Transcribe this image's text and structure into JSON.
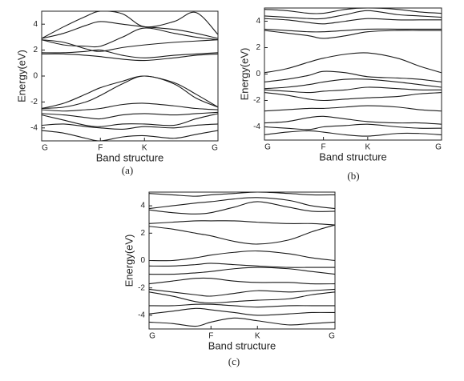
{
  "chart_data": [
    {
      "type": "line",
      "caption": "(a)",
      "xlabel": "Band structure",
      "ylabel": "Energy(eV)",
      "color": "#1a1a1a",
      "xlim": [
        0,
        1
      ],
      "ylim": [
        -5,
        5
      ],
      "xticks": [
        {
          "value": 0,
          "label": "G"
        },
        {
          "value": 0.333,
          "label": "F"
        },
        {
          "value": 0.583,
          "label": "K"
        },
        {
          "value": 1,
          "label": "G"
        }
      ],
      "yticks": [
        -4,
        -2,
        0,
        2,
        4
      ],
      "x": [
        0,
        0.125,
        0.25,
        0.333,
        0.458,
        0.583,
        0.75,
        0.875,
        1
      ],
      "series": [
        {
          "values": [
            2.9,
            3.8,
            4.6,
            5,
            4.8,
            3.8,
            4.2,
            4.9,
            3.2
          ]
        },
        {
          "values": [
            2.9,
            3.3,
            3.9,
            4.2,
            4.0,
            3.8,
            3.6,
            3.3,
            2.9
          ]
        },
        {
          "values": [
            2.8,
            2.4,
            2.3,
            2.3,
            3.0,
            3.7,
            3.3,
            3.0,
            2.8
          ]
        },
        {
          "values": [
            2.8,
            2.6,
            2.1,
            1.9,
            2.2,
            2.4,
            2.6,
            2.7,
            2.8
          ]
        },
        {
          "values": [
            1.8,
            1.8,
            1.9,
            2.0,
            1.6,
            1.4,
            1.6,
            1.7,
            1.8
          ]
        },
        {
          "values": [
            1.7,
            1.7,
            1.6,
            1.5,
            1.3,
            1.2,
            1.4,
            1.6,
            1.7
          ]
        },
        {
          "values": [
            -2.5,
            -2.1,
            -1.4,
            -0.9,
            -0.4,
            0,
            -0.5,
            -1.4,
            -2.4
          ]
        },
        {
          "values": [
            -2.5,
            -2.4,
            -2.0,
            -1.5,
            -0.6,
            0,
            -0.6,
            -1.7,
            -2.4
          ]
        },
        {
          "values": [
            -2.6,
            -2.7,
            -2.6,
            -2.5,
            -2.2,
            -2.1,
            -2.3,
            -2.5,
            -2.6
          ]
        },
        {
          "values": [
            -2.9,
            -3.0,
            -3.2,
            -3.3,
            -3.0,
            -2.9,
            -3.0,
            -2.9,
            -2.8
          ]
        },
        {
          "values": [
            -3.0,
            -3.4,
            -3.8,
            -3.9,
            -3.7,
            -3.7,
            -3.8,
            -3.3,
            -2.9
          ]
        },
        {
          "values": [
            -3.8,
            -3.7,
            -3.9,
            -4.0,
            -4.1,
            -3.9,
            -4.0,
            -3.8,
            -3.7
          ]
        },
        {
          "values": [
            -4.2,
            -4.4,
            -4.8,
            -5.0,
            -4.7,
            -4.6,
            -4.8,
            -4.5,
            -4.2
          ]
        }
      ]
    },
    {
      "type": "line",
      "caption": "(b)",
      "xlabel": "Band structure",
      "ylabel": "Energy(eV)",
      "color": "#1a1a1a",
      "xlim": [
        0,
        1
      ],
      "ylim": [
        -5,
        5
      ],
      "xticks": [
        {
          "value": 0,
          "label": "G"
        },
        {
          "value": 0.333,
          "label": "F"
        },
        {
          "value": 0.583,
          "label": "K"
        },
        {
          "value": 1,
          "label": "G"
        }
      ],
      "yticks": [
        -4,
        -2,
        0,
        2,
        4
      ],
      "x": [
        0,
        0.125,
        0.25,
        0.333,
        0.458,
        0.583,
        0.75,
        0.875,
        1
      ],
      "series": [
        {
          "values": [
            4.9,
            4.8,
            4.6,
            4.6,
            4.9,
            5,
            4.9,
            4.7,
            4.6
          ]
        },
        {
          "values": [
            4.4,
            4.3,
            4.2,
            4.2,
            4.5,
            4.8,
            4.5,
            4.4,
            4.3
          ]
        },
        {
          "values": [
            4.2,
            4.1,
            3.9,
            3.8,
            4.0,
            4.2,
            4.1,
            4.1,
            4.1
          ]
        },
        {
          "values": [
            3.4,
            3.3,
            3.2,
            3.2,
            3.3,
            3.4,
            3.4,
            3.4,
            3.4
          ]
        },
        {
          "values": [
            3.3,
            3.1,
            2.9,
            2.7,
            2.9,
            3.2,
            3.3,
            3.3,
            3.3
          ]
        },
        {
          "values": [
            0.1,
            0.4,
            0.9,
            1.2,
            1.5,
            1.6,
            1.2,
            0.6,
            0.1
          ]
        },
        {
          "values": [
            -0.6,
            -0.4,
            -0.1,
            0.2,
            0.1,
            -0.2,
            -0.3,
            -0.4,
            -0.6
          ]
        },
        {
          "values": [
            -1.1,
            -1.0,
            -0.8,
            -0.6,
            -0.4,
            -0.4,
            -0.6,
            -0.8,
            -1.0
          ]
        },
        {
          "values": [
            -1.2,
            -1.3,
            -1.4,
            -1.3,
            -1.2,
            -1.0,
            -1.1,
            -1.2,
            -1.2
          ]
        },
        {
          "values": [
            -1.4,
            -1.6,
            -1.9,
            -2.0,
            -1.9,
            -1.8,
            -1.7,
            -1.5,
            -1.4
          ]
        },
        {
          "values": [
            -2.8,
            -2.7,
            -2.6,
            -2.6,
            -2.5,
            -2.4,
            -2.5,
            -2.7,
            -2.8
          ]
        },
        {
          "values": [
            -3.7,
            -3.6,
            -3.3,
            -3.2,
            -3.4,
            -3.6,
            -3.7,
            -3.7,
            -3.8
          ]
        },
        {
          "values": [
            -4.0,
            -4.1,
            -4.2,
            -4.0,
            -3.9,
            -3.8,
            -4.0,
            -4.1,
            -4.1
          ]
        },
        {
          "values": [
            -4.6,
            -4.4,
            -4.3,
            -4.4,
            -4.6,
            -4.7,
            -4.5,
            -4.5,
            -4.6
          ]
        }
      ]
    },
    {
      "type": "line",
      "caption": "(c)",
      "xlabel": "Band structure",
      "ylabel": "Energy(eV)",
      "color": "#1a1a1a",
      "xlim": [
        0,
        1
      ],
      "ylim": [
        -5,
        5
      ],
      "xticks": [
        {
          "value": 0,
          "label": "G"
        },
        {
          "value": 0.333,
          "label": "F"
        },
        {
          "value": 0.583,
          "label": "K"
        },
        {
          "value": 1,
          "label": "G"
        }
      ],
      "yticks": [
        -4,
        -2,
        0,
        2,
        4
      ],
      "x": [
        0,
        0.125,
        0.25,
        0.333,
        0.458,
        0.583,
        0.75,
        0.875,
        1
      ],
      "series": [
        {
          "values": [
            4.9,
            4.8,
            4.7,
            4.8,
            4.9,
            5,
            4.9,
            4.8,
            4.8
          ]
        },
        {
          "values": [
            3.8,
            4.0,
            4.2,
            4.3,
            4.5,
            4.6,
            4.4,
            4.0,
            3.8
          ]
        },
        {
          "values": [
            3.7,
            3.5,
            3.4,
            3.5,
            3.9,
            4.3,
            3.9,
            3.6,
            3.6
          ]
        },
        {
          "values": [
            2.7,
            2.8,
            2.9,
            2.9,
            2.9,
            2.8,
            2.7,
            2.7,
            2.6
          ]
        },
        {
          "values": [
            2.5,
            2.3,
            2.0,
            1.8,
            1.4,
            1.2,
            1.5,
            2.1,
            2.6
          ]
        },
        {
          "values": [
            0.0,
            0.0,
            0.2,
            0.4,
            0.6,
            0.7,
            0.5,
            0.2,
            0.0
          ]
        },
        {
          "values": [
            -0.4,
            -0.4,
            -0.3,
            -0.2,
            -0.3,
            -0.4,
            -0.5,
            -0.5,
            -0.5
          ]
        },
        {
          "values": [
            -1.0,
            -1.0,
            -0.9,
            -0.8,
            -0.6,
            -0.5,
            -0.6,
            -0.8,
            -1.0
          ]
        },
        {
          "values": [
            -1.7,
            -1.5,
            -1.3,
            -1.3,
            -1.5,
            -1.6,
            -1.6,
            -1.7,
            -1.7
          ]
        },
        {
          "values": [
            -2.1,
            -2.3,
            -2.5,
            -2.6,
            -2.4,
            -2.2,
            -2.3,
            -2.2,
            -2.1
          ]
        },
        {
          "values": [
            -2.3,
            -2.6,
            -3.0,
            -3.1,
            -3.0,
            -2.9,
            -2.8,
            -2.5,
            -2.3
          ]
        },
        {
          "values": [
            -3.3,
            -3.3,
            -3.2,
            -3.2,
            -3.3,
            -3.4,
            -3.3,
            -3.3,
            -3.3
          ]
        },
        {
          "values": [
            -3.9,
            -3.7,
            -3.5,
            -3.6,
            -3.8,
            -4.0,
            -3.9,
            -3.8,
            -3.8
          ]
        },
        {
          "values": [
            -4.5,
            -4.6,
            -4.8,
            -4.5,
            -4.2,
            -4.4,
            -4.7,
            -4.6,
            -4.5
          ]
        }
      ]
    }
  ]
}
